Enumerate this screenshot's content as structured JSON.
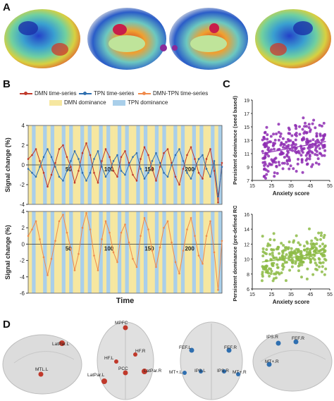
{
  "panels": {
    "a": "A",
    "b": "B",
    "c": "C",
    "d": "D"
  },
  "legend": {
    "dmn_series": "DMN time-series",
    "tpn_series": "TPN time-series",
    "diff_series": "DMN-TPN time-series",
    "dmn_dominance": "DMN dominance",
    "tpn_dominance": "TPN dominance"
  },
  "colors": {
    "dmn": "#c0392b",
    "tpn": "#2f6fb0",
    "diff": "#f08a4b",
    "dmn_band": "#f6e7a0",
    "tpn_band": "#a9cfea",
    "scatter_top": "#8e2db3",
    "scatter_bottom": "#8dbb47"
  },
  "chart_data": [
    {
      "type": "line",
      "xlabel": "",
      "ylabel": "Signal change (%)",
      "ylim": [
        -4,
        4
      ],
      "yticks": [
        "-4",
        "-2",
        "0",
        "2",
        "4"
      ],
      "xticks": [
        "50",
        "100",
        "150",
        "200"
      ],
      "x_range": [
        0,
        240
      ],
      "series": [
        {
          "name": "DMN time-series",
          "values": [
            0.6,
            1.0,
            1.6,
            0.4,
            -0.8,
            -2.2,
            -1.0,
            0.2,
            1.6,
            2.0,
            0.8,
            -0.2,
            -1.8,
            -0.6,
            1.2,
            2.2,
            1.0,
            -0.8,
            -1.8,
            0.4,
            1.6,
            0.8,
            -0.6,
            -1.2,
            0.8,
            1.4,
            0.2,
            -1.0,
            -1.6,
            0.6,
            1.8,
            1.0,
            -0.4,
            -1.6,
            -0.2,
            1.2,
            1.6,
            0.2,
            -1.2,
            -2.0,
            -0.4,
            1.0,
            1.8,
            0.6,
            -0.8,
            -1.4,
            0.6,
            1.6,
            -0.6,
            -3.8,
            0.2
          ]
        },
        {
          "name": "TPN time-series",
          "values": [
            -0.4,
            -0.8,
            -1.2,
            -0.2,
            0.8,
            1.6,
            0.8,
            -0.2,
            -1.2,
            -1.6,
            -0.6,
            0.4,
            1.4,
            0.6,
            -0.8,
            -1.6,
            -0.8,
            0.6,
            1.4,
            -0.2,
            -1.2,
            -0.6,
            0.4,
            1.0,
            -0.6,
            -1.0,
            0.0,
            0.8,
            1.2,
            -0.4,
            -1.4,
            -0.8,
            0.4,
            1.2,
            0.2,
            -0.8,
            -1.2,
            0.0,
            1.0,
            1.6,
            0.4,
            -0.8,
            -1.4,
            -0.4,
            0.6,
            1.0,
            -0.4,
            -1.2,
            0.4,
            -3.2,
            -0.2
          ]
        }
      ],
      "bands": "alternating DMN/TPN dominance"
    },
    {
      "type": "line",
      "xlabel": "Time",
      "ylabel": "Signal change (%)",
      "ylim": [
        -6,
        4
      ],
      "yticks": [
        "-6",
        "-4",
        "-2",
        "0",
        "2",
        "4"
      ],
      "xticks": [
        "50",
        "100",
        "150",
        "200"
      ],
      "x_range": [
        0,
        240
      ],
      "series": [
        {
          "name": "DMN-TPN time-series",
          "values": [
            1.0,
            1.8,
            2.8,
            0.6,
            -1.6,
            -3.8,
            -1.8,
            0.4,
            2.8,
            3.6,
            1.4,
            -0.6,
            -3.2,
            -1.2,
            2.0,
            3.8,
            1.8,
            -1.4,
            -3.2,
            0.6,
            2.8,
            1.4,
            -1.0,
            -2.2,
            1.4,
            2.4,
            0.2,
            -1.8,
            -2.8,
            1.0,
            3.2,
            1.8,
            -0.8,
            -2.8,
            -0.4,
            2.0,
            2.8,
            0.2,
            -2.2,
            -3.6,
            -0.8,
            1.8,
            3.2,
            1.0,
            -1.4,
            -2.4,
            1.0,
            2.8,
            -1.0,
            -5.6,
            0.4
          ]
        }
      ],
      "bands": "alternating DMN/TPN dominance"
    },
    {
      "type": "scatter",
      "xlabel": "Anxiety score",
      "ylabel": "Persistent dominance (seed based)",
      "xlim": [
        15,
        55
      ],
      "ylim": [
        7,
        19
      ],
      "xticks": [
        "15",
        "25",
        "35",
        "45",
        "55"
      ],
      "yticks": [
        "7",
        "9",
        "11",
        "13",
        "15",
        "17",
        "19"
      ],
      "points": "approx. 300 subjects, positive trend 11.0 → 12.8"
    },
    {
      "type": "scatter",
      "xlabel": "Anxiety score",
      "ylabel": "Persistent dominance (pre-defined ROI)",
      "xlim": [
        15,
        55
      ],
      "ylim": [
        6,
        16
      ],
      "xticks": [
        "15",
        "25",
        "35",
        "45",
        "55"
      ],
      "yticks": [
        "6",
        "8",
        "10",
        "12",
        "14",
        "16"
      ],
      "points": "approx. 300 subjects, positive trend 9.6 → 10.9"
    }
  ],
  "roi_labels": {
    "brain1": [
      "LatPar.L",
      "MTL.L"
    ],
    "brain2": [
      "MPFC",
      "HF.L",
      "HF.R",
      "PCC",
      "LatPar.L",
      "LatPar.R"
    ],
    "brain3": [
      "FEF.L",
      "FEF.R",
      "MT+.L",
      "IPS.L",
      "IPS.R",
      "MT+.R"
    ],
    "brain4": [
      "IPS.R",
      "FEF.R",
      "MT+.R"
    ]
  }
}
